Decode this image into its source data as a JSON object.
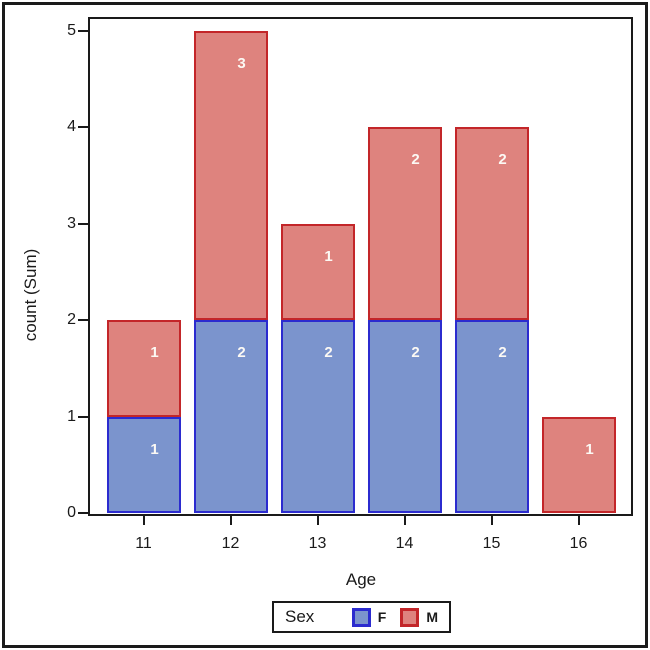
{
  "chart_data": {
    "type": "bar",
    "stacked": true,
    "title": "",
    "xlabel": "Age",
    "ylabel": "count (Sum)",
    "categories": [
      "11",
      "12",
      "13",
      "14",
      "15",
      "16"
    ],
    "series": [
      {
        "name": "F",
        "fill": "#7B94CD",
        "border": "#2B2BCF",
        "values": [
          1,
          2,
          2,
          2,
          2,
          0
        ]
      },
      {
        "name": "M",
        "fill": "#DE837E",
        "border": "#C32629",
        "values": [
          1,
          3,
          1,
          2,
          2,
          1
        ]
      }
    ],
    "ylim": [
      0,
      5
    ],
    "yticks": [
      "0",
      "1",
      "2",
      "3",
      "4",
      "5"
    ],
    "grid": false,
    "value_labels": true,
    "value_label_color": "#FFFFFF",
    "legend": {
      "title": "Sex",
      "position": "bottom",
      "entries": [
        "F",
        "M"
      ]
    },
    "axis_color": "#1A1A1A",
    "background": "#FFFFFF"
  }
}
